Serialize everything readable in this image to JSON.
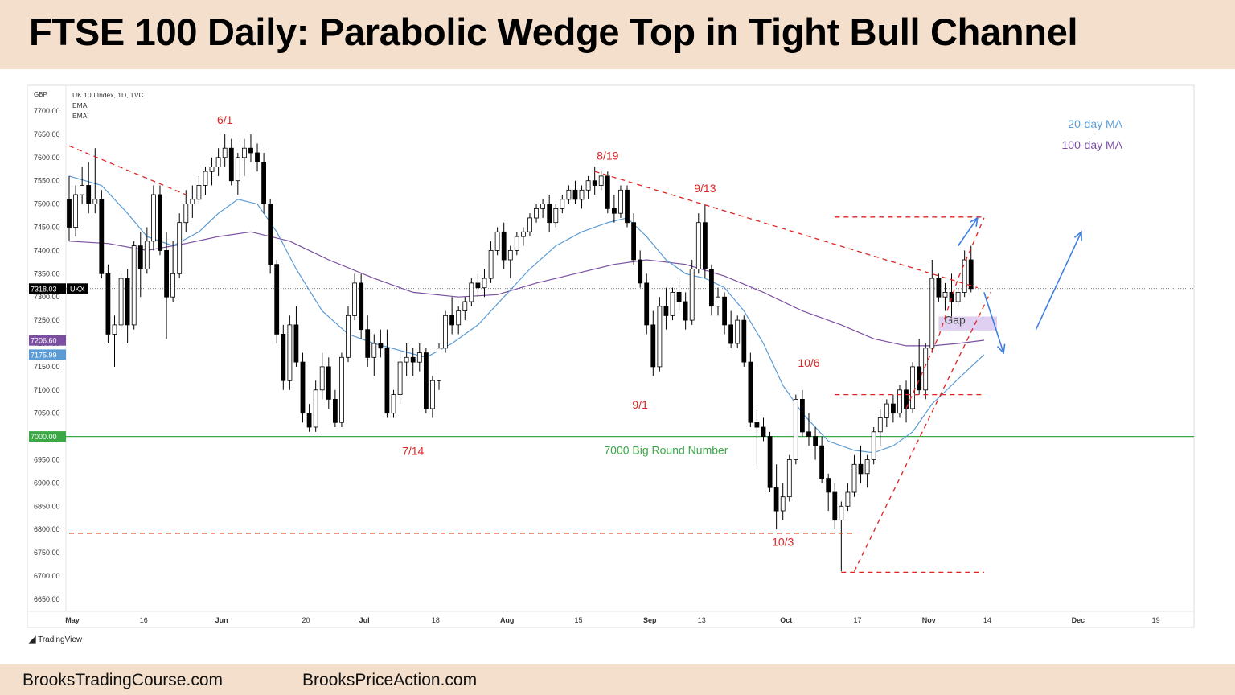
{
  "title": "FTSE 100 Daily: Parabolic Wedge Top in Tight Bull Channel",
  "footer": {
    "left_link": "BrooksTradingCourse.com",
    "right_link": "BrooksPriceAction.com"
  },
  "branding": {
    "tradingview": "TradingView",
    "tradingview_icon": "tradingview-logo-icon"
  },
  "colors": {
    "bull_candle": "#ffffff",
    "bear_candle": "#000000",
    "ema20": "#5b9bd5",
    "ema100": "#7b4fa0",
    "round_number_line": "#3aa845",
    "annotation_red": "#e02424",
    "arrow_blue": "#3d7ee0",
    "gap_fill": "#d9c8ee",
    "title_bg": "#f4dfcc"
  },
  "chart_data": {
    "type": "candlestick",
    "symbol_info": [
      "UK 100 Index, 1D, TVC",
      "EMA",
      "EMA"
    ],
    "currency": "GBP",
    "y_ticks": [
      "7700.00",
      "7650.00",
      "7600.00",
      "7550.00",
      "7500.00",
      "7450.00",
      "7400.00",
      "7350.00",
      "7300.00",
      "7250.00",
      "7200.00",
      "7150.00",
      "7100.00",
      "7050.00",
      "7000.00",
      "6950.00",
      "6900.00",
      "6850.00",
      "6800.00",
      "6750.00",
      "6700.00",
      "6650.00"
    ],
    "ylim": [
      6630,
      7730
    ],
    "x_ticks": [
      {
        "label": "May",
        "index": 0,
        "bold": true
      },
      {
        "label": "16",
        "index": 11,
        "bold": false
      },
      {
        "label": "Jun",
        "index": 23,
        "bold": true
      },
      {
        "label": "20",
        "index": 36,
        "bold": false
      },
      {
        "label": "Jul",
        "index": 45,
        "bold": true
      },
      {
        "label": "18",
        "index": 56,
        "bold": false
      },
      {
        "label": "Aug",
        "index": 67,
        "bold": true
      },
      {
        "label": "15",
        "index": 78,
        "bold": false
      },
      {
        "label": "Sep",
        "index": 89,
        "bold": true
      },
      {
        "label": "13",
        "index": 97,
        "bold": false
      },
      {
        "label": "Oct",
        "index": 110,
        "bold": true
      },
      {
        "label": "17",
        "index": 121,
        "bold": false
      },
      {
        "label": "Nov",
        "index": 132,
        "bold": true
      },
      {
        "label": "14",
        "index": 141,
        "bold": false
      },
      {
        "label": "Dec",
        "index": 155,
        "bold": true
      },
      {
        "label": "19",
        "index": 167,
        "bold": false
      }
    ],
    "price_labels": [
      {
        "value": 7318.03,
        "text": "7318.03",
        "tag": "UKX",
        "color": "#000000"
      },
      {
        "value": 7206.6,
        "text": "7206.60",
        "color": "#7b4fa0"
      },
      {
        "value": 7175.99,
        "text": "7175.99",
        "color": "#5b9bd5"
      },
      {
        "value": 7000.0,
        "text": "7000.00",
        "color": "#3aa845"
      }
    ],
    "legend": [
      {
        "text": "20-day MA",
        "color": "#5b9bd5"
      },
      {
        "text": "100-day MA",
        "color": "#7b4fa0"
      }
    ],
    "annotations": [
      {
        "text": "6/1",
        "index": 24,
        "price": 7672,
        "color": "#e02424"
      },
      {
        "text": "8/19",
        "index": 83,
        "price": 7595,
        "color": "#e02424"
      },
      {
        "text": "9/13",
        "index": 98,
        "price": 7525,
        "color": "#e02424"
      },
      {
        "text": "10/6",
        "index": 114,
        "price": 7150,
        "color": "#e02424"
      },
      {
        "text": "9/1",
        "index": 88,
        "price": 7060,
        "color": "#e02424"
      },
      {
        "text": "7/14",
        "index": 53,
        "price": 6960,
        "color": "#e02424"
      },
      {
        "text": "10/3",
        "index": 110,
        "price": 6765,
        "color": "#e02424"
      },
      {
        "text": "7000 Big Round Number",
        "index": 92,
        "price": 6962,
        "color": "#3aa845"
      },
      {
        "text": "Gap",
        "index": 136.5,
        "price": 7242,
        "color": "#444444"
      }
    ],
    "ohlc": [
      [
        7510,
        7560,
        7420,
        7450
      ],
      [
        7450,
        7540,
        7430,
        7520
      ],
      [
        7520,
        7580,
        7500,
        7540
      ],
      [
        7540,
        7590,
        7480,
        7500
      ],
      [
        7500,
        7620,
        7480,
        7510
      ],
      [
        7510,
        7530,
        7340,
        7350
      ],
      [
        7350,
        7370,
        7200,
        7220
      ],
      [
        7220,
        7260,
        7150,
        7240
      ],
      [
        7240,
        7350,
        7230,
        7340
      ],
      [
        7340,
        7360,
        7200,
        7240
      ],
      [
        7240,
        7420,
        7230,
        7410
      ],
      [
        7410,
        7440,
        7300,
        7360
      ],
      [
        7360,
        7450,
        7350,
        7420
      ],
      [
        7420,
        7540,
        7400,
        7520
      ],
      [
        7520,
        7540,
        7390,
        7400
      ],
      [
        7400,
        7440,
        7210,
        7300
      ],
      [
        7300,
        7420,
        7290,
        7350
      ],
      [
        7350,
        7480,
        7340,
        7460
      ],
      [
        7460,
        7530,
        7440,
        7500
      ],
      [
        7500,
        7540,
        7470,
        7510
      ],
      [
        7510,
        7560,
        7500,
        7540
      ],
      [
        7540,
        7580,
        7520,
        7570
      ],
      [
        7570,
        7600,
        7540,
        7580
      ],
      [
        7580,
        7620,
        7560,
        7600
      ],
      [
        7600,
        7650,
        7580,
        7620
      ],
      [
        7620,
        7640,
        7540,
        7550
      ],
      [
        7550,
        7610,
        7520,
        7600
      ],
      [
        7600,
        7640,
        7560,
        7620
      ],
      [
        7620,
        7650,
        7590,
        7610
      ],
      [
        7610,
        7630,
        7570,
        7590
      ],
      [
        7590,
        7610,
        7480,
        7500
      ],
      [
        7500,
        7510,
        7350,
        7370
      ],
      [
        7370,
        7380,
        7200,
        7220
      ],
      [
        7220,
        7240,
        7100,
        7120
      ],
      [
        7120,
        7260,
        7100,
        7240
      ],
      [
        7240,
        7280,
        7150,
        7160
      ],
      [
        7160,
        7180,
        7030,
        7050
      ],
      [
        7050,
        7070,
        7010,
        7020
      ],
      [
        7020,
        7120,
        7010,
        7100
      ],
      [
        7100,
        7180,
        7080,
        7150
      ],
      [
        7150,
        7170,
        7060,
        7080
      ],
      [
        7080,
        7100,
        7020,
        7030
      ],
      [
        7030,
        7180,
        7020,
        7170
      ],
      [
        7170,
        7280,
        7160,
        7260
      ],
      [
        7260,
        7350,
        7250,
        7330
      ],
      [
        7330,
        7350,
        7210,
        7230
      ],
      [
        7230,
        7260,
        7150,
        7170
      ],
      [
        7170,
        7220,
        7130,
        7200
      ],
      [
        7200,
        7230,
        7170,
        7190
      ],
      [
        7190,
        7230,
        7040,
        7050
      ],
      [
        7050,
        7100,
        7040,
        7090
      ],
      [
        7090,
        7180,
        7070,
        7160
      ],
      [
        7160,
        7200,
        7130,
        7170
      ],
      [
        7170,
        7190,
        7130,
        7160
      ],
      [
        7160,
        7200,
        7140,
        7180
      ],
      [
        7180,
        7190,
        7050,
        7060
      ],
      [
        7060,
        7130,
        7040,
        7120
      ],
      [
        7120,
        7200,
        7100,
        7190
      ],
      [
        7190,
        7270,
        7180,
        7260
      ],
      [
        7260,
        7300,
        7220,
        7240
      ],
      [
        7240,
        7280,
        7220,
        7270
      ],
      [
        7270,
        7300,
        7250,
        7290
      ],
      [
        7290,
        7340,
        7280,
        7330
      ],
      [
        7330,
        7350,
        7300,
        7320
      ],
      [
        7320,
        7360,
        7300,
        7340
      ],
      [
        7340,
        7420,
        7330,
        7400
      ],
      [
        7400,
        7450,
        7390,
        7440
      ],
      [
        7440,
        7460,
        7360,
        7380
      ],
      [
        7380,
        7410,
        7340,
        7400
      ],
      [
        7400,
        7440,
        7390,
        7430
      ],
      [
        7430,
        7450,
        7410,
        7440
      ],
      [
        7440,
        7480,
        7430,
        7470
      ],
      [
        7470,
        7500,
        7460,
        7490
      ],
      [
        7490,
        7510,
        7470,
        7500
      ],
      [
        7500,
        7520,
        7440,
        7460
      ],
      [
        7460,
        7500,
        7450,
        7490
      ],
      [
        7490,
        7520,
        7480,
        7510
      ],
      [
        7510,
        7540,
        7500,
        7530
      ],
      [
        7530,
        7550,
        7500,
        7510
      ],
      [
        7510,
        7540,
        7490,
        7530
      ],
      [
        7530,
        7560,
        7510,
        7550
      ],
      [
        7550,
        7580,
        7520,
        7540
      ],
      [
        7540,
        7570,
        7530,
        7560
      ],
      [
        7560,
        7570,
        7480,
        7490
      ],
      [
        7490,
        7520,
        7460,
        7480
      ],
      [
        7480,
        7540,
        7470,
        7530
      ],
      [
        7530,
        7540,
        7450,
        7460
      ],
      [
        7460,
        7480,
        7370,
        7380
      ],
      [
        7380,
        7400,
        7320,
        7330
      ],
      [
        7330,
        7350,
        7220,
        7240
      ],
      [
        7240,
        7270,
        7130,
        7150
      ],
      [
        7150,
        7300,
        7140,
        7280
      ],
      [
        7280,
        7320,
        7230,
        7260
      ],
      [
        7260,
        7320,
        7250,
        7310
      ],
      [
        7310,
        7340,
        7270,
        7290
      ],
      [
        7290,
        7310,
        7230,
        7250
      ],
      [
        7250,
        7380,
        7240,
        7360
      ],
      [
        7360,
        7480,
        7350,
        7460
      ],
      [
        7460,
        7500,
        7340,
        7360
      ],
      [
        7360,
        7370,
        7260,
        7280
      ],
      [
        7280,
        7320,
        7260,
        7300
      ],
      [
        7300,
        7310,
        7220,
        7240
      ],
      [
        7240,
        7270,
        7190,
        7200
      ],
      [
        7200,
        7260,
        7190,
        7250
      ],
      [
        7250,
        7260,
        7150,
        7160
      ],
      [
        7160,
        7180,
        7020,
        7030
      ],
      [
        7030,
        7060,
        6940,
        7020
      ],
      [
        7020,
        7040,
        6990,
        7000
      ],
      [
        7000,
        7010,
        6880,
        6890
      ],
      [
        6890,
        6940,
        6800,
        6840
      ],
      [
        6840,
        6900,
        6820,
        6870
      ],
      [
        6870,
        6960,
        6860,
        6950
      ],
      [
        6950,
        7090,
        6940,
        7080
      ],
      [
        7080,
        7100,
        7000,
        7010
      ],
      [
        7010,
        7050,
        6980,
        7000
      ],
      [
        7000,
        7020,
        6950,
        6980
      ],
      [
        6980,
        7000,
        6900,
        6910
      ],
      [
        6910,
        6920,
        6840,
        6880
      ],
      [
        6880,
        6900,
        6800,
        6820
      ],
      [
        6820,
        6860,
        6710,
        6850
      ],
      [
        6850,
        6900,
        6840,
        6880
      ],
      [
        6880,
        6960,
        6870,
        6940
      ],
      [
        6940,
        6980,
        6900,
        6920
      ],
      [
        6920,
        6960,
        6890,
        6950
      ],
      [
        6950,
        7020,
        6940,
        7010
      ],
      [
        7010,
        7060,
        6980,
        7040
      ],
      [
        7040,
        7080,
        7020,
        7070
      ],
      [
        7070,
        7090,
        7030,
        7050
      ],
      [
        7050,
        7110,
        7040,
        7100
      ],
      [
        7100,
        7120,
        7030,
        7060
      ],
      [
        7060,
        7160,
        7050,
        7150
      ],
      [
        7150,
        7210,
        7090,
        7100
      ],
      [
        7100,
        7200,
        7080,
        7190
      ],
      [
        7190,
        7380,
        7180,
        7340
      ],
      [
        7340,
        7350,
        7290,
        7300
      ],
      [
        7300,
        7330,
        7270,
        7310
      ],
      [
        7310,
        7350,
        7250,
        7290
      ],
      [
        7290,
        7320,
        7280,
        7310
      ],
      [
        7310,
        7400,
        7300,
        7380
      ],
      [
        7380,
        7410,
        7310,
        7318.03
      ]
    ],
    "ema20_points": [
      [
        0,
        7560
      ],
      [
        5,
        7540
      ],
      [
        9,
        7480
      ],
      [
        12,
        7430
      ],
      [
        16,
        7410
      ],
      [
        20,
        7440
      ],
      [
        23,
        7480
      ],
      [
        26,
        7510
      ],
      [
        29,
        7500
      ],
      [
        32,
        7440
      ],
      [
        35,
        7360
      ],
      [
        39,
        7270
      ],
      [
        43,
        7220
      ],
      [
        47,
        7200
      ],
      [
        51,
        7185
      ],
      [
        55,
        7170
      ],
      [
        59,
        7200
      ],
      [
        63,
        7240
      ],
      [
        67,
        7300
      ],
      [
        71,
        7360
      ],
      [
        75,
        7410
      ],
      [
        79,
        7440
      ],
      [
        83,
        7460
      ],
      [
        86,
        7470
      ],
      [
        89,
        7430
      ],
      [
        92,
        7380
      ],
      [
        95,
        7350
      ],
      [
        98,
        7340
      ],
      [
        101,
        7320
      ],
      [
        104,
        7270
      ],
      [
        107,
        7200
      ],
      [
        110,
        7110
      ],
      [
        113,
        7050
      ],
      [
        117,
        6990
      ],
      [
        121,
        6970
      ],
      [
        124,
        6965
      ],
      [
        127,
        6980
      ],
      [
        130,
        7010
      ],
      [
        133,
        7070
      ],
      [
        136,
        7110
      ],
      [
        139,
        7150
      ],
      [
        141,
        7176
      ]
    ],
    "ema100_points": [
      [
        0,
        7420
      ],
      [
        6,
        7415
      ],
      [
        12,
        7400
      ],
      [
        18,
        7415
      ],
      [
        23,
        7430
      ],
      [
        28,
        7440
      ],
      [
        34,
        7420
      ],
      [
        40,
        7380
      ],
      [
        47,
        7340
      ],
      [
        53,
        7310
      ],
      [
        60,
        7300
      ],
      [
        66,
        7305
      ],
      [
        72,
        7330
      ],
      [
        78,
        7350
      ],
      [
        84,
        7370
      ],
      [
        89,
        7380
      ],
      [
        95,
        7370
      ],
      [
        101,
        7345
      ],
      [
        107,
        7310
      ],
      [
        113,
        7270
      ],
      [
        119,
        7240
      ],
      [
        124,
        7210
      ],
      [
        129,
        7195
      ],
      [
        133,
        7195
      ],
      [
        137,
        7200
      ],
      [
        141,
        7207
      ]
    ],
    "red_lines": [
      {
        "points": [
          [
            0,
            7625
          ],
          [
            18,
            7520
          ]
        ],
        "dashed": true
      },
      {
        "points": [
          [
            81,
            7570
          ],
          [
            140,
            7320
          ]
        ],
        "dashed": true
      },
      {
        "points": [
          [
            118,
            7472
          ],
          [
            141,
            7472
          ]
        ],
        "dashed": true
      },
      {
        "points": [
          [
            118,
            7090
          ],
          [
            141,
            7090
          ]
        ],
        "dashed": true
      },
      {
        "points": [
          [
            0,
            6792
          ],
          [
            121,
            6792
          ]
        ],
        "dashed": true
      },
      {
        "points": [
          [
            119,
            6708
          ],
          [
            141,
            6708
          ]
        ],
        "dashed": true
      },
      {
        "points": [
          [
            121,
            6710
          ],
          [
            142,
            7310
          ]
        ],
        "dashed": true
      },
      {
        "points": [
          [
            129,
            7060
          ],
          [
            134,
            7215
          ],
          [
            137,
            7340
          ],
          [
            141,
            7470
          ]
        ],
        "dashed": true
      }
    ],
    "blue_arrows": [
      {
        "from": [
          137,
          7410
        ],
        "to": [
          140,
          7470
        ],
        "color": "#3d7ee0"
      },
      {
        "from": [
          141,
          7310
        ],
        "to": [
          144,
          7180
        ],
        "color": "#3d7ee0"
      },
      {
        "from": [
          149,
          7230
        ],
        "to": [
          156,
          7440
        ],
        "color": "#3d7ee0"
      }
    ],
    "gap_box": {
      "x0": 134,
      "x1": 143,
      "y0": 7228,
      "y1": 7258
    },
    "green_level": 7000,
    "last_price": 7318.03
  }
}
